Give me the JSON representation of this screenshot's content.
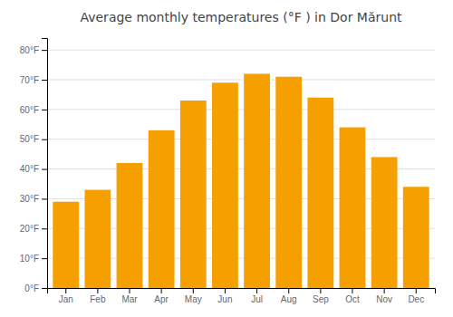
{
  "chart_data": {
    "type": "bar",
    "title": "Average monthly temperatures (°F ) in Dor Mărunt",
    "categories": [
      "Jan",
      "Feb",
      "Mar",
      "Apr",
      "May",
      "Jun",
      "Jul",
      "Aug",
      "Sep",
      "Oct",
      "Nov",
      "Dec"
    ],
    "values": [
      29,
      33,
      42,
      53,
      63,
      69,
      72,
      71,
      64,
      54,
      44,
      34
    ],
    "color": "#F5A000",
    "ylim": [
      0,
      84
    ],
    "yticks": [
      {
        "value": 0,
        "label": "0°F"
      },
      {
        "value": 10,
        "label": "10°F"
      },
      {
        "value": 20,
        "label": "20°F"
      },
      {
        "value": 30,
        "label": "30°F"
      },
      {
        "value": 40,
        "label": "40°F"
      },
      {
        "value": 50,
        "label": "50°F"
      },
      {
        "value": 60,
        "label": "60°F"
      },
      {
        "value": 70,
        "label": "70°F"
      },
      {
        "value": 80,
        "label": "80°F"
      }
    ],
    "grid": true
  }
}
